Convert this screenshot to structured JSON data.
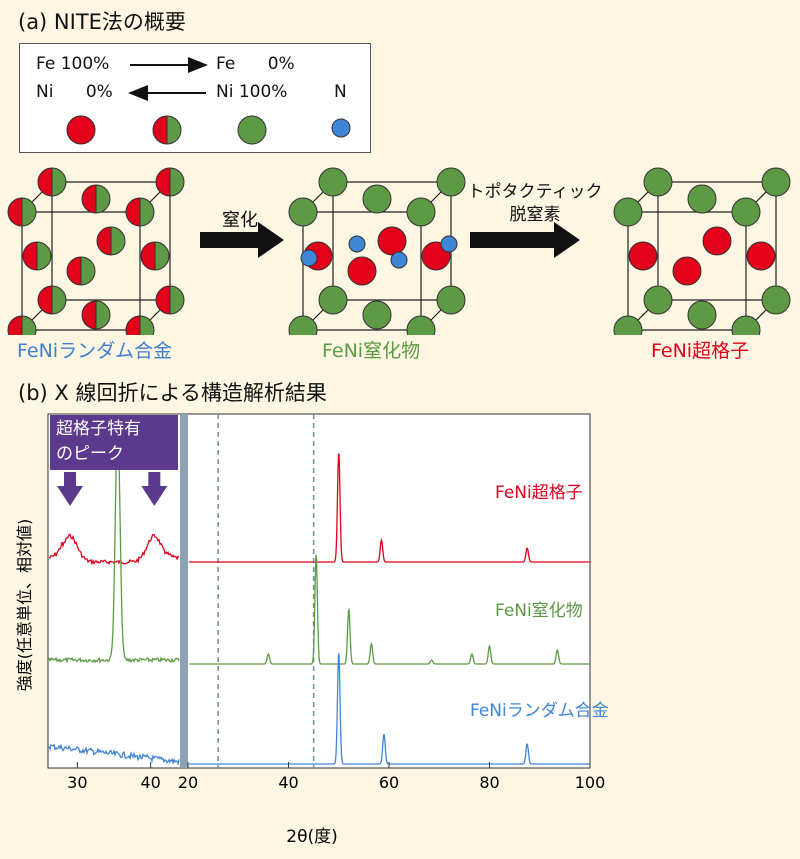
{
  "section_a": {
    "title": "(a) NITE法の概要"
  },
  "legend": {
    "row1_left": "Fe 100%",
    "row1_right": "Fe      0%",
    "row2_left": "Ni      0%",
    "row2_right": "Ni 100%",
    "n_label": "N",
    "colors": {
      "fe": "#e2001a",
      "ni": "#5e9a45",
      "n": "#3f86d6"
    }
  },
  "process": {
    "step1_label": "窒化",
    "step2_label_line1": "トポタクティック",
    "step2_label_line2": "脱窒素",
    "crystals": [
      {
        "label": "FeNiランダム合金",
        "color": "#3f7fd1"
      },
      {
        "label": "FeNi窒化物",
        "color": "#5e9a45"
      },
      {
        "label": "FeNi超格子",
        "color": "#e2001a"
      }
    ]
  },
  "section_b": {
    "title": "(b) X 線回折による構造解析結果"
  },
  "chart_data": {
    "type": "line",
    "title": "",
    "xlabel": "2θ(度)",
    "ylabel": "強度(任意単位、相対値)",
    "callout": {
      "line1": "超格子特有",
      "line2": "のピーク"
    },
    "panels": [
      {
        "name": "left",
        "xlim": [
          26,
          44
        ],
        "xticks": [
          30,
          40
        ]
      },
      {
        "name": "right",
        "xlim": [
          20,
          100
        ],
        "xticks": [
          20,
          40,
          60,
          80,
          100
        ]
      }
    ],
    "reference_lines_x": [
      26,
      45
    ],
    "series": [
      {
        "name": "FeNi超格子",
        "color": "#e2001a",
        "left_peaks": [
          29,
          40.5
        ],
        "right_peaks": [
          50,
          58.5,
          87.5
        ]
      },
      {
        "name": "FeNi窒化物",
        "color": "#5e9a45",
        "left_peaks": [
          35.5
        ],
        "right_peaks": [
          36,
          45.5,
          52,
          56.5,
          68.5,
          76.5,
          80,
          93.5
        ]
      },
      {
        "name": "FeNiランダム合金",
        "color": "#3f86d6",
        "left_peaks": [],
        "right_peaks": [
          50,
          59,
          87.5
        ]
      }
    ]
  }
}
